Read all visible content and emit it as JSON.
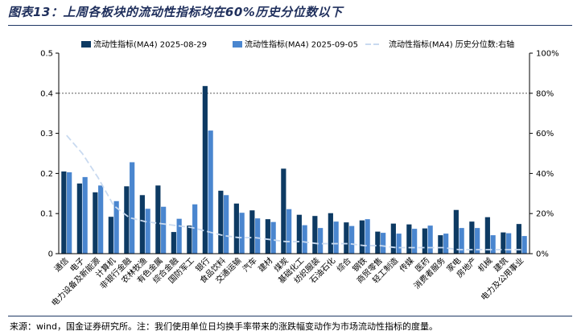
{
  "figure": {
    "title": "图表13：上周各板块的流动性指标均在60%历史分位数以下",
    "note": "来源：wind，国金证券研究所。注：我们使用单位日均换手率带来的涨跌幅变动作为市场流动性指标的度量。"
  },
  "chart_data": {
    "type": "bar",
    "categories": [
      "通信",
      "电子",
      "电力设备及新能源",
      "计算机",
      "非银行金融",
      "农林牧渔",
      "有色金属",
      "综合金融",
      "国防军工",
      "银行",
      "食品饮料",
      "交通运输",
      "汽车",
      "建材",
      "煤炭",
      "基础化工",
      "纺织服装",
      "石油石化",
      "综合",
      "钢铁",
      "商贸零售",
      "轻工制造",
      "传媒",
      "医药",
      "消费者服务",
      "家电",
      "房地产",
      "机械",
      "建筑",
      "电力及公用事业"
    ],
    "series": [
      {
        "name": "流动性指标(MA4) 2025-08-29",
        "axis": "left",
        "kind": "bar",
        "color": "#0d3a63",
        "values": [
          0.205,
          0.175,
          0.153,
          0.092,
          0.168,
          0.146,
          0.17,
          0.054,
          0.07,
          0.418,
          0.157,
          0.125,
          0.108,
          0.086,
          0.212,
          0.097,
          0.094,
          0.101,
          0.078,
          0.083,
          0.055,
          0.075,
          0.073,
          0.063,
          0.046,
          0.109,
          0.08,
          0.091,
          0.053,
          0.074
        ]
      },
      {
        "name": "流动性指标(MA4) 2025-09-05",
        "axis": "left",
        "kind": "bar",
        "color": "#4a86cf",
        "values": [
          0.203,
          0.191,
          0.17,
          0.131,
          0.228,
          0.112,
          0.117,
          0.087,
          0.123,
          0.307,
          0.146,
          0.102,
          0.088,
          0.079,
          0.111,
          0.071,
          0.064,
          0.08,
          0.069,
          0.086,
          0.052,
          0.05,
          0.062,
          0.07,
          0.05,
          0.064,
          0.064,
          0.046,
          0.051,
          0.044
        ]
      },
      {
        "name": "流动性指标(MA4) 历史分位数:右轴",
        "axis": "right",
        "kind": "line",
        "color": "#c9daf0",
        "values": [
          59,
          50,
          38,
          24,
          18,
          16,
          15,
          14,
          13,
          11,
          9,
          8,
          8,
          7,
          6,
          6,
          5,
          5,
          5,
          4,
          4,
          3,
          3,
          3,
          3,
          2,
          2,
          2,
          2,
          2
        ]
      }
    ],
    "ylim_left": [
      0,
      0.5
    ],
    "yticks_left": [
      "0",
      "0.1",
      "0.2",
      "0.3",
      "0.4",
      "0.5"
    ],
    "ylim_right": [
      0,
      100
    ],
    "yticks_right": [
      "0%",
      "20%",
      "40%",
      "60%",
      "80%",
      "100%"
    ],
    "grid": "horizontal dashed at 0.4 and 80%",
    "legend": "top"
  }
}
